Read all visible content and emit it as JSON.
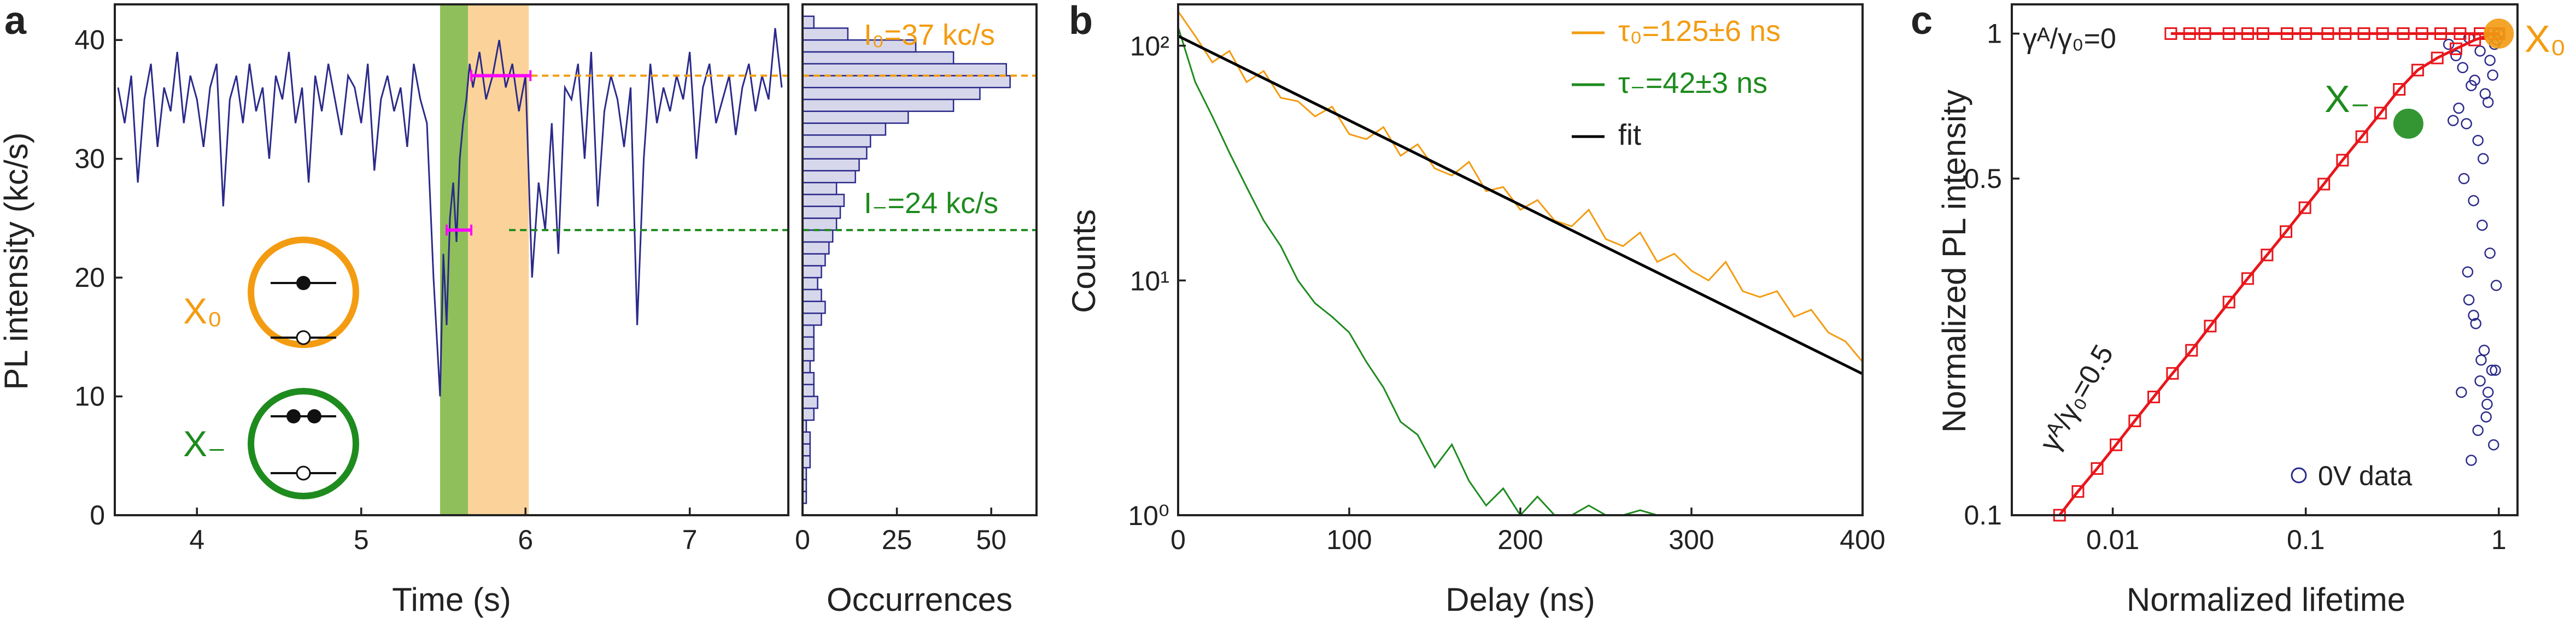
{
  "panels": {
    "a": {
      "label": "a",
      "xlabel": "Time (s)",
      "ylabel": "PL intensity (kc/s)",
      "hist_xlabel": "Occurrences",
      "I0_label": "I₀=37 kc/s",
      "Iminus_label": "I₋=24 kc/s",
      "X0_label": "X₀",
      "Xminus_label": "X₋"
    },
    "b": {
      "label": "b",
      "xlabel": "Delay (ns)",
      "ylabel": "Counts"
    },
    "c": {
      "label": "c",
      "xlabel": "Normalized lifetime",
      "ylabel": "Normalized PL intensity",
      "label_gamma0": "γᴬ/γ₀=0",
      "label_gamma05": "γᴬ/γ₀=0.5",
      "X0_label": "X₀",
      "Xminus_label": "X₋"
    }
  },
  "colors": {
    "trace": "#2b2a8a",
    "orange": "#f39c12",
    "green": "#1e8b1e",
    "red": "#e8161b",
    "magenta": "#ff00ff",
    "shade_orange": "#fbd39a",
    "shade_green": "#8fbf5a",
    "hist_fill": "#d7d7ec",
    "fit": "#000000"
  },
  "chart_data": [
    {
      "type": "line",
      "title": "",
      "xlabel": "Time (s)",
      "ylabel": "PL intensity (kc/s)",
      "xlim": [
        3.5,
        7.6
      ],
      "ylim": [
        0,
        43
      ],
      "xticks": [
        4,
        5,
        6,
        7
      ],
      "yticks": [
        0,
        10,
        20,
        30,
        40
      ],
      "regions": [
        {
          "x0": 5.48,
          "x1": 5.65,
          "color": "green"
        },
        {
          "x0": 5.65,
          "x1": 6.02,
          "color": "orange"
        }
      ],
      "hlines": [
        {
          "y": 37,
          "color": "orange",
          "style": "dashed"
        },
        {
          "y": 24,
          "color": "green",
          "style": "dashed"
        }
      ],
      "markers": [
        {
          "x0": 5.67,
          "x1": 6.03,
          "y": 37,
          "color": "magenta"
        },
        {
          "x0": 5.52,
          "x1": 5.67,
          "y": 24,
          "color": "magenta"
        }
      ],
      "series": [
        {
          "x": [
            3.52,
            3.56,
            3.6,
            3.64,
            3.68,
            3.72,
            3.76,
            3.8,
            3.84,
            3.88,
            3.92,
            3.96,
            4.0,
            4.04,
            4.08,
            4.12,
            4.16,
            4.2,
            4.24,
            4.28,
            4.32,
            4.36,
            4.4,
            4.44,
            4.48,
            4.52,
            4.56,
            4.6,
            4.64,
            4.68,
            4.72,
            4.76,
            4.8,
            4.84,
            4.88,
            4.92,
            4.96,
            5.0,
            5.04,
            5.08,
            5.12,
            5.16,
            5.2,
            5.24,
            5.28,
            5.32,
            5.36,
            5.4,
            5.44,
            5.48,
            5.5,
            5.52,
            5.54,
            5.56,
            5.58,
            5.6,
            5.62,
            5.64,
            5.66,
            5.68,
            5.72,
            5.76,
            5.8,
            5.84,
            5.88,
            5.92,
            5.96,
            6.0,
            6.04,
            6.08,
            6.12,
            6.16,
            6.2,
            6.24,
            6.28,
            6.32,
            6.36,
            6.4,
            6.44,
            6.48,
            6.52,
            6.56,
            6.6,
            6.64,
            6.68,
            6.72,
            6.76,
            6.8,
            6.84,
            6.88,
            6.92,
            6.96,
            7.0,
            7.04,
            7.08,
            7.12,
            7.16,
            7.2,
            7.24,
            7.28,
            7.32,
            7.36,
            7.4,
            7.44,
            7.48,
            7.52,
            7.56
          ],
          "y": [
            36,
            33,
            37,
            28,
            35,
            38,
            31,
            36,
            34,
            39,
            33,
            37,
            35,
            31,
            36,
            38,
            26,
            35,
            37,
            33,
            38,
            34,
            36,
            30,
            37,
            35,
            39,
            33,
            36,
            28,
            37,
            34,
            38,
            35,
            32,
            37,
            36,
            33,
            38,
            29,
            35,
            37,
            34,
            36,
            31,
            38,
            35,
            33,
            20,
            10,
            22,
            16,
            25,
            28,
            23,
            30,
            33,
            35,
            38,
            36,
            39,
            35,
            37,
            40,
            36,
            38,
            34,
            37,
            20,
            28,
            24,
            33,
            22,
            36,
            35,
            38,
            30,
            39,
            26,
            34,
            37,
            35,
            31,
            36,
            16,
            30,
            38,
            33,
            36,
            34,
            37,
            35,
            39,
            30,
            36,
            38,
            33,
            35,
            37,
            32,
            36,
            38,
            34,
            37,
            35,
            41,
            36
          ]
        }
      ]
    },
    {
      "type": "bar",
      "title": "",
      "xlabel": "Occurrences",
      "xlim": [
        0,
        62
      ],
      "xticks": [
        0,
        25,
        50
      ],
      "ylim": [
        0,
        43
      ],
      "bin_centers": [
        0.5,
        1.5,
        2.5,
        3.5,
        4.5,
        5.5,
        6.5,
        7.5,
        8.5,
        9.5,
        10.5,
        11.5,
        12.5,
        13.5,
        14.5,
        15.5,
        16.5,
        17.5,
        18.5,
        19.5,
        20.5,
        21.5,
        22.5,
        23.5,
        24.5,
        25.5,
        26.5,
        27.5,
        28.5,
        29.5,
        30.5,
        31.5,
        32.5,
        33.5,
        34.5,
        35.5,
        36.5,
        37.5,
        38.5,
        39.5,
        40.5,
        41.5
      ],
      "values": [
        0,
        1,
        1,
        1,
        2,
        2,
        2,
        1,
        3,
        4,
        3,
        3,
        2,
        3,
        3,
        3,
        5,
        6,
        5,
        4,
        5,
        6,
        7,
        8,
        9,
        10,
        11,
        9,
        14,
        15,
        17,
        18,
        22,
        28,
        40,
        47,
        55,
        54,
        40,
        30,
        12,
        3
      ]
    },
    {
      "type": "line",
      "title": "",
      "xlabel": "Delay (ns)",
      "ylabel": "Counts",
      "xlim": [
        0,
        400
      ],
      "ylim": [
        1,
        150
      ],
      "yscale": "log",
      "xticks": [
        0,
        100,
        200,
        300,
        400
      ],
      "yticks": [
        1,
        10,
        100
      ],
      "ytick_labels": [
        "10⁰",
        "10¹",
        "10²"
      ],
      "legend": "top-right",
      "series": [
        {
          "name": "τ₀=125±6 ns",
          "color": "orange",
          "x": [
            0,
            10,
            20,
            30,
            40,
            50,
            60,
            70,
            80,
            90,
            100,
            110,
            120,
            130,
            140,
            150,
            160,
            170,
            180,
            190,
            200,
            210,
            220,
            230,
            240,
            250,
            260,
            270,
            280,
            290,
            300,
            310,
            320,
            330,
            340,
            350,
            360,
            370,
            380,
            390,
            400
          ],
          "y": [
            140,
            110,
            85,
            95,
            70,
            78,
            60,
            58,
            50,
            55,
            42,
            40,
            45,
            34,
            38,
            30,
            28,
            32,
            24,
            25,
            20,
            22,
            18,
            17,
            20,
            15,
            14,
            16,
            12,
            13,
            11,
            10,
            12,
            9,
            8.5,
            9,
            7,
            7.5,
            6,
            5.5,
            4.5
          ]
        },
        {
          "name": "τ₋=42±3 ns",
          "color": "green",
          "x": [
            0,
            10,
            20,
            30,
            40,
            50,
            60,
            70,
            80,
            90,
            100,
            110,
            120,
            130,
            140,
            150,
            160,
            170,
            180,
            190,
            200,
            210,
            220,
            230,
            240,
            250,
            260,
            270,
            280,
            290,
            300,
            310,
            320,
            330,
            340,
            350,
            360,
            370,
            380,
            390,
            400
          ],
          "y": [
            120,
            70,
            50,
            35,
            25,
            18,
            14,
            10,
            8,
            7,
            6,
            4.5,
            3.5,
            2.5,
            2.2,
            1.6,
            2,
            1.4,
            1.1,
            1.3,
            1,
            1.2,
            1,
            1,
            1.1,
            1,
            1,
            1.05,
            1,
            1,
            1,
            1,
            1,
            1,
            1,
            1,
            1,
            1,
            1,
            1,
            1
          ]
        },
        {
          "name": "fit",
          "color": "black",
          "x": [
            0,
            400
          ],
          "y": [
            110,
            4
          ],
          "note": ""
        }
      ]
    },
    {
      "type": "scatter",
      "title": "",
      "xlabel": "Normalized lifetime",
      "ylabel": "Normalized PL intensity",
      "xscale": "log",
      "yscale": "log",
      "xlim": [
        0.003,
        1.25
      ],
      "ylim": [
        0.1,
        1.15
      ],
      "xticks": [
        0.01,
        0.1,
        1
      ],
      "yticks": [
        0.1,
        0.5,
        1
      ],
      "legend": "bottom-right",
      "series": [
        {
          "name": "0V data",
          "color": "navy",
          "marker": "open-circle",
          "x": [
            0.55,
            0.6,
            0.65,
            0.7,
            0.75,
            0.8,
            0.85,
            0.9,
            0.95,
            1.0,
            0.62,
            0.68,
            0.72,
            0.78,
            0.83,
            0.88,
            0.93,
            0.98,
            0.58,
            0.66,
            0.74,
            0.82,
            0.9,
            0.97,
            0.7,
            0.76,
            0.84,
            0.92,
            0.64,
            0.8,
            0.86,
            0.94,
            0.72,
            0.78,
            0.88,
            0.96,
            0.69,
            0.74,
            0.81,
            0.87
          ],
          "y": [
            0.95,
            0.9,
            0.85,
            0.98,
            0.8,
            0.92,
            0.75,
            0.88,
            0.95,
            1.0,
            0.7,
            0.65,
            0.78,
            0.6,
            0.55,
            0.72,
            0.82,
            0.97,
            0.66,
            0.5,
            0.45,
            0.4,
            0.35,
            0.3,
            0.28,
            0.25,
            0.22,
            0.2,
            0.18,
            0.19,
            0.16,
            0.14,
            0.13,
            0.15,
            0.18,
            0.2,
            0.32,
            0.26,
            0.21,
            0.17
          ]
        },
        {
          "name": "γᴬ/γ₀=0.5",
          "color": "red",
          "marker": "open-square",
          "x": [
            0.0053,
            0.0066,
            0.0083,
            0.0104,
            0.013,
            0.0163,
            0.0204,
            0.0256,
            0.032,
            0.04,
            0.05,
            0.063,
            0.079,
            0.099,
            0.124,
            0.155,
            0.195,
            0.244,
            0.305,
            0.38,
            0.48,
            0.6,
            0.75,
            0.94
          ],
          "y": [
            0.1,
            0.112,
            0.125,
            0.14,
            0.157,
            0.176,
            0.197,
            0.22,
            0.247,
            0.277,
            0.31,
            0.347,
            0.388,
            0.435,
            0.487,
            0.546,
            0.611,
            0.684,
            0.766,
            0.84,
            0.89,
            0.93,
            0.97,
            1.0
          ]
        },
        {
          "name": "γᴬ/γ₀=0",
          "color": "red",
          "marker": "open-square",
          "x": [
            0.02,
            0.025,
            0.03,
            0.04,
            0.05,
            0.06,
            0.08,
            0.1,
            0.13,
            0.16,
            0.2,
            0.25,
            0.32,
            0.4,
            0.5,
            0.63,
            0.8,
            1.0
          ],
          "y": [
            1,
            1,
            1,
            1,
            1,
            1,
            1,
            1,
            1,
            1,
            1,
            1,
            1,
            1,
            1,
            1,
            1,
            1
          ]
        }
      ],
      "points": [
        {
          "label": "X₀",
          "x": 1.0,
          "y": 1.0,
          "color": "orange"
        },
        {
          "label": "X₋",
          "x": 0.34,
          "y": 0.65,
          "color": "green"
        }
      ]
    }
  ]
}
